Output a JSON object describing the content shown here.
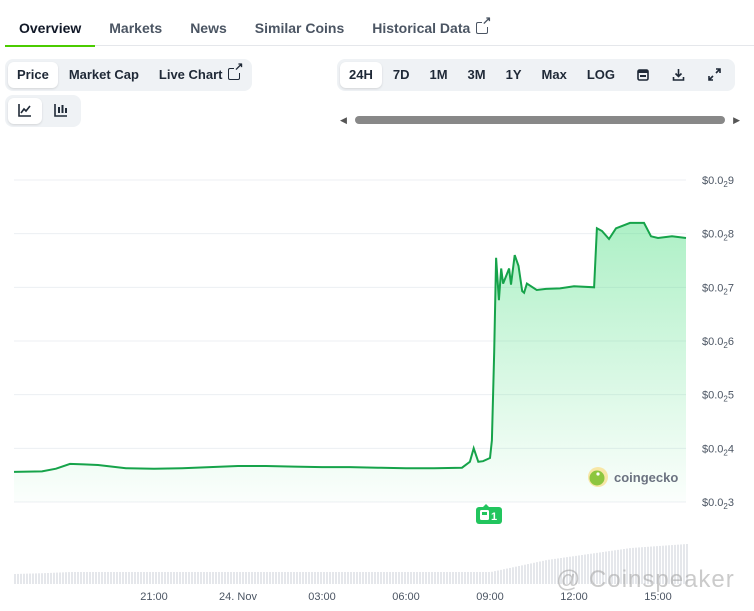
{
  "tabs": [
    {
      "label": "Overview",
      "active": true
    },
    {
      "label": "Markets"
    },
    {
      "label": "News"
    },
    {
      "label": "Similar Coins"
    },
    {
      "label": "Historical Data",
      "external": true
    }
  ],
  "chart_types": {
    "price": "Price",
    "market_cap": "Market Cap",
    "live_chart": "Live Chart",
    "selected": "Price"
  },
  "chart_styles": {
    "line_icon": "line-chart-icon",
    "candle_icon": "candlestick-icon",
    "selected": "line"
  },
  "ranges": {
    "items": [
      "24H",
      "7D",
      "1M",
      "3M",
      "1Y",
      "Max",
      "LOG"
    ],
    "selected": "24H",
    "calendar_icon": "calendar-icon",
    "download_icon": "download-icon",
    "expand_icon": "expand-icon"
  },
  "colors": {
    "line": "#16a34a",
    "fill": "#4ade80",
    "badge": "#22c55e",
    "accent": "#4bcc00"
  },
  "event_badge": {
    "count": "1",
    "icon": "news-icon"
  },
  "logo": {
    "text": "coingecko"
  },
  "watermark": "@ Coinspeaker",
  "chart_data": {
    "type": "area",
    "y_unit": "USD",
    "yticks": [
      {
        "v": 0.009,
        "prefix": "$0.0",
        "sub": "2",
        "digit": "9"
      },
      {
        "v": 0.008,
        "prefix": "$0.0",
        "sub": "2",
        "digit": "8"
      },
      {
        "v": 0.007,
        "prefix": "$0.0",
        "sub": "2",
        "digit": "7"
      },
      {
        "v": 0.006,
        "prefix": "$0.0",
        "sub": "2",
        "digit": "6"
      },
      {
        "v": 0.005,
        "prefix": "$0.0",
        "sub": "2",
        "digit": "5"
      },
      {
        "v": 0.004,
        "prefix": "$0.0",
        "sub": "2",
        "digit": "4"
      },
      {
        "v": 0.003,
        "prefix": "$0.0",
        "sub": "2",
        "digit": "3"
      }
    ],
    "ylim": [
      0.003,
      0.009
    ],
    "xticks": [
      "21:00",
      "24. Nov",
      "03:00",
      "06:00",
      "09:00",
      "12:00",
      "15:00"
    ],
    "x_start": "16:00",
    "grid": true,
    "series": [
      {
        "points": [
          [
            "16:00",
            0.00356
          ],
          [
            "17:00",
            0.00357
          ],
          [
            "17:30",
            0.00362
          ],
          [
            "18:00",
            0.00371
          ],
          [
            "18:30",
            0.0037
          ],
          [
            "19:00",
            0.00369
          ],
          [
            "20:00",
            0.00363
          ],
          [
            "21:00",
            0.00362
          ],
          [
            "22:00",
            0.00363
          ],
          [
            "23:00",
            0.00365
          ],
          [
            "00:00",
            0.00367
          ],
          [
            "01:00",
            0.00367
          ],
          [
            "02:00",
            0.00366
          ],
          [
            "03:00",
            0.00365
          ],
          [
            "04:00",
            0.00365
          ],
          [
            "05:00",
            0.00364
          ],
          [
            "06:00",
            0.00363
          ],
          [
            "07:00",
            0.00363
          ],
          [
            "08:00",
            0.00364
          ],
          [
            "08:17",
            0.00375
          ],
          [
            "08:25",
            0.004
          ],
          [
            "08:35",
            0.00375
          ],
          [
            "08:45",
            0.00376
          ],
          [
            "09:00",
            0.00382
          ],
          [
            "09:04",
            0.00415
          ],
          [
            "09:09",
            0.0058
          ],
          [
            "09:13",
            0.00755
          ],
          [
            "09:19",
            0.00676
          ],
          [
            "09:24",
            0.00735
          ],
          [
            "09:28",
            0.00707
          ],
          [
            "09:41",
            0.00735
          ],
          [
            "09:45",
            0.00705
          ],
          [
            "09:53",
            0.0076
          ],
          [
            "10:01",
            0.0074
          ],
          [
            "10:09",
            0.00693
          ],
          [
            "10:13",
            0.0069
          ],
          [
            "10:19",
            0.00707
          ],
          [
            "10:40",
            0.00695
          ],
          [
            "11:00",
            0.00697
          ],
          [
            "11:30",
            0.00698
          ],
          [
            "12:00",
            0.00702
          ],
          [
            "12:43",
            0.007
          ],
          [
            "12:49",
            0.0081
          ],
          [
            "13:00",
            0.00805
          ],
          [
            "13:15",
            0.0079
          ],
          [
            "13:30",
            0.0081
          ],
          [
            "14:00",
            0.0082
          ],
          [
            "14:30",
            0.0082
          ],
          [
            "14:45",
            0.00795
          ],
          [
            "15:00",
            0.00792
          ],
          [
            "15:30",
            0.00795
          ],
          [
            "16:00",
            0.00792
          ]
        ]
      }
    ],
    "volume_relative": [
      0.25,
      0.27,
      0.3,
      0.3,
      0.3,
      0.3,
      0.3,
      0.3,
      0.3,
      0.3,
      0.3,
      0.3,
      0.3,
      0.3,
      0.3,
      0.3,
      0.3,
      0.3,
      0.45,
      0.6,
      0.7,
      0.8,
      0.9,
      0.95,
      1.0
    ]
  }
}
